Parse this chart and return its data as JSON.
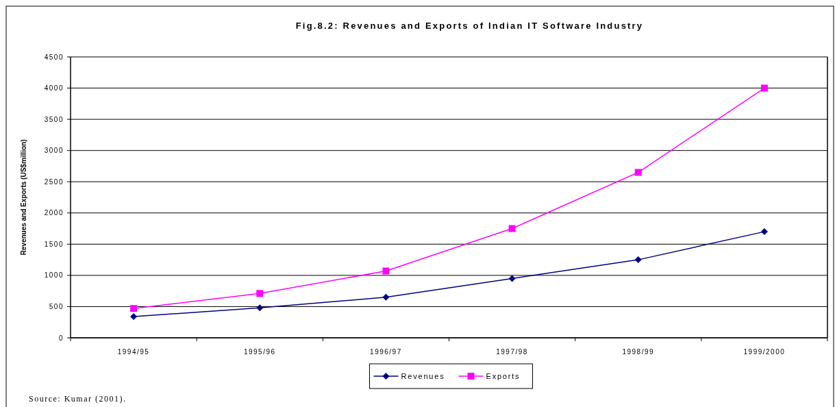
{
  "chart_data": {
    "type": "line",
    "title": "Fig.8.2: Revenues and Exports of Indian IT Software Industry",
    "ylabel": "Revenues and Exports (US$million)",
    "categories": [
      "1994/95",
      "1995/96",
      "1996/97",
      "1997/98",
      "1998/99",
      "1999/2000"
    ],
    "series": [
      {
        "name": "Revenues",
        "color": "#000080",
        "marker": "diamond",
        "values": [
          340,
          480,
          650,
          950,
          1250,
          1700
        ]
      },
      {
        "name": "Exports",
        "color": "#ff00ff",
        "marker": "square",
        "values": [
          470,
          710,
          1070,
          1750,
          2650,
          4000
        ]
      }
    ],
    "ylim": [
      0,
      4500
    ],
    "yticks": [
      0,
      500,
      1000,
      1500,
      2000,
      2500,
      3000,
      3500,
      4000,
      4500
    ],
    "grid": "y",
    "legend": "bottom",
    "line_style": "solid",
    "annotations": [
      "Source: Kumar (2001)."
    ]
  }
}
